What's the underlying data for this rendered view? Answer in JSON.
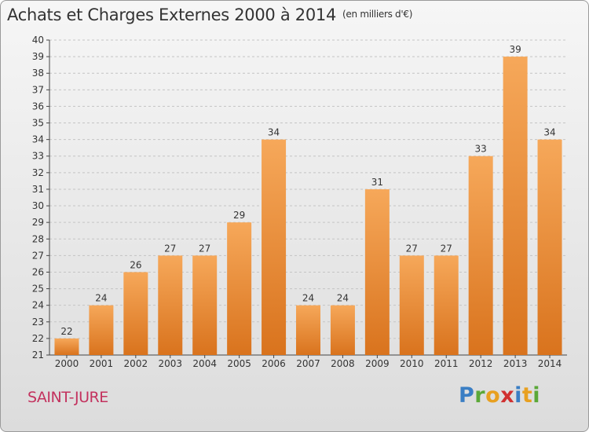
{
  "title": "Achats et Charges Externes 2000 à 2014",
  "unit_note": "(en milliers d'€)",
  "commune": "SAINT-JURE",
  "logo": {
    "text": "Proxiti",
    "colors": [
      "#3a7ec4",
      "#5ba838",
      "#e8a020",
      "#d03030",
      "#3a7ec4",
      "#e8a020",
      "#5ba838"
    ]
  },
  "colors": {
    "bar_light": "#f6a85a",
    "bar_dark": "#d9731d",
    "grid": "#c4c4c4",
    "text": "#333333",
    "commune": "#c3325e"
  },
  "chart_data": {
    "type": "bar",
    "title": "Achats et Charges Externes 2000 à 2014",
    "subtitle": "(en milliers d'€)",
    "categories": [
      "2000",
      "2001",
      "2002",
      "2003",
      "2004",
      "2005",
      "2006",
      "2007",
      "2008",
      "2009",
      "2010",
      "2011",
      "2012",
      "2013",
      "2014"
    ],
    "values": [
      22,
      24,
      26,
      27,
      27,
      29,
      34,
      24,
      24,
      31,
      27,
      27,
      33,
      39,
      34
    ],
    "ylim": [
      21,
      40
    ],
    "yticks": [
      21,
      22,
      23,
      24,
      25,
      26,
      27,
      28,
      29,
      30,
      31,
      32,
      33,
      34,
      35,
      36,
      37,
      38,
      39,
      40
    ],
    "grid": true,
    "data_labels": true
  }
}
